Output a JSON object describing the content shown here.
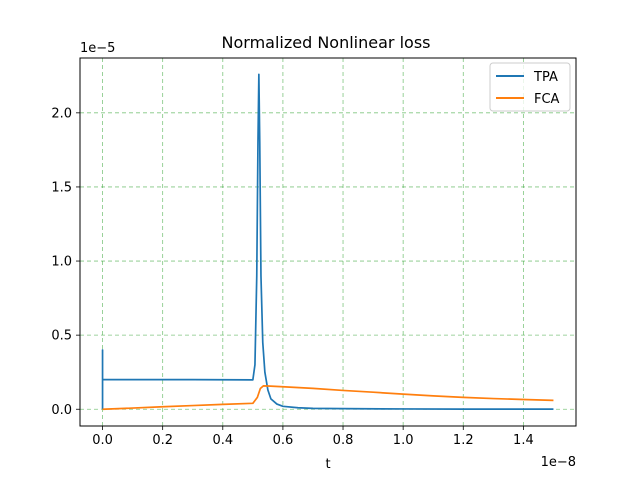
{
  "chart_data": {
    "type": "line",
    "title": "Normalized Nonlinear loss",
    "xlabel": "t",
    "ylabel": "",
    "x_scale_label": "1e−8",
    "y_scale_label": "1e−5",
    "xlim": [
      -0.075,
      1.575
    ],
    "ylim": [
      -0.113,
      2.37
    ],
    "x_ticks": [
      0.0,
      0.2,
      0.4,
      0.6,
      0.8,
      1.0,
      1.2,
      1.4
    ],
    "x_tick_labels": [
      "0.0",
      "0.2",
      "0.4",
      "0.6",
      "0.8",
      "1.0",
      "1.2",
      "1.4"
    ],
    "y_ticks": [
      0.0,
      0.5,
      1.0,
      1.5,
      2.0
    ],
    "y_tick_labels": [
      "0.0",
      "0.5",
      "1.0",
      "1.5",
      "2.0"
    ],
    "grid": true,
    "grid_color": "#2ca02c",
    "legend_position": "top-right",
    "series": [
      {
        "name": "TPA",
        "color": "#1f77b4",
        "points": [
          [
            0.0,
            0.0
          ],
          [
            0.0,
            0.4
          ],
          [
            0.0,
            0.2
          ],
          [
            0.003,
            0.2
          ],
          [
            0.1,
            0.2
          ],
          [
            0.2,
            0.2
          ],
          [
            0.3,
            0.2
          ],
          [
            0.4,
            0.199
          ],
          [
            0.5,
            0.198
          ],
          [
            0.507,
            0.3
          ],
          [
            0.513,
            0.9
          ],
          [
            0.517,
            1.8
          ],
          [
            0.52,
            2.26
          ],
          [
            0.523,
            1.8
          ],
          [
            0.527,
            0.9
          ],
          [
            0.533,
            0.45
          ],
          [
            0.54,
            0.25
          ],
          [
            0.55,
            0.13
          ],
          [
            0.56,
            0.07
          ],
          [
            0.58,
            0.035
          ],
          [
            0.6,
            0.02
          ],
          [
            0.65,
            0.01
          ],
          [
            0.7,
            0.006
          ],
          [
            0.8,
            0.004
          ],
          [
            1.0,
            0.002
          ],
          [
            1.2,
            0.001
          ],
          [
            1.5,
            0.001
          ]
        ]
      },
      {
        "name": "FCA",
        "color": "#ff7f0e",
        "points": [
          [
            0.0,
            0.0
          ],
          [
            0.1,
            0.008
          ],
          [
            0.2,
            0.017
          ],
          [
            0.3,
            0.025
          ],
          [
            0.4,
            0.033
          ],
          [
            0.5,
            0.04
          ],
          [
            0.515,
            0.08
          ],
          [
            0.525,
            0.14
          ],
          [
            0.535,
            0.158
          ],
          [
            0.55,
            0.157
          ],
          [
            0.6,
            0.152
          ],
          [
            0.7,
            0.141
          ],
          [
            0.8,
            0.127
          ],
          [
            0.9,
            0.115
          ],
          [
            1.0,
            0.102
          ],
          [
            1.1,
            0.09
          ],
          [
            1.2,
            0.08
          ],
          [
            1.3,
            0.072
          ],
          [
            1.4,
            0.066
          ],
          [
            1.5,
            0.06
          ]
        ]
      }
    ]
  }
}
